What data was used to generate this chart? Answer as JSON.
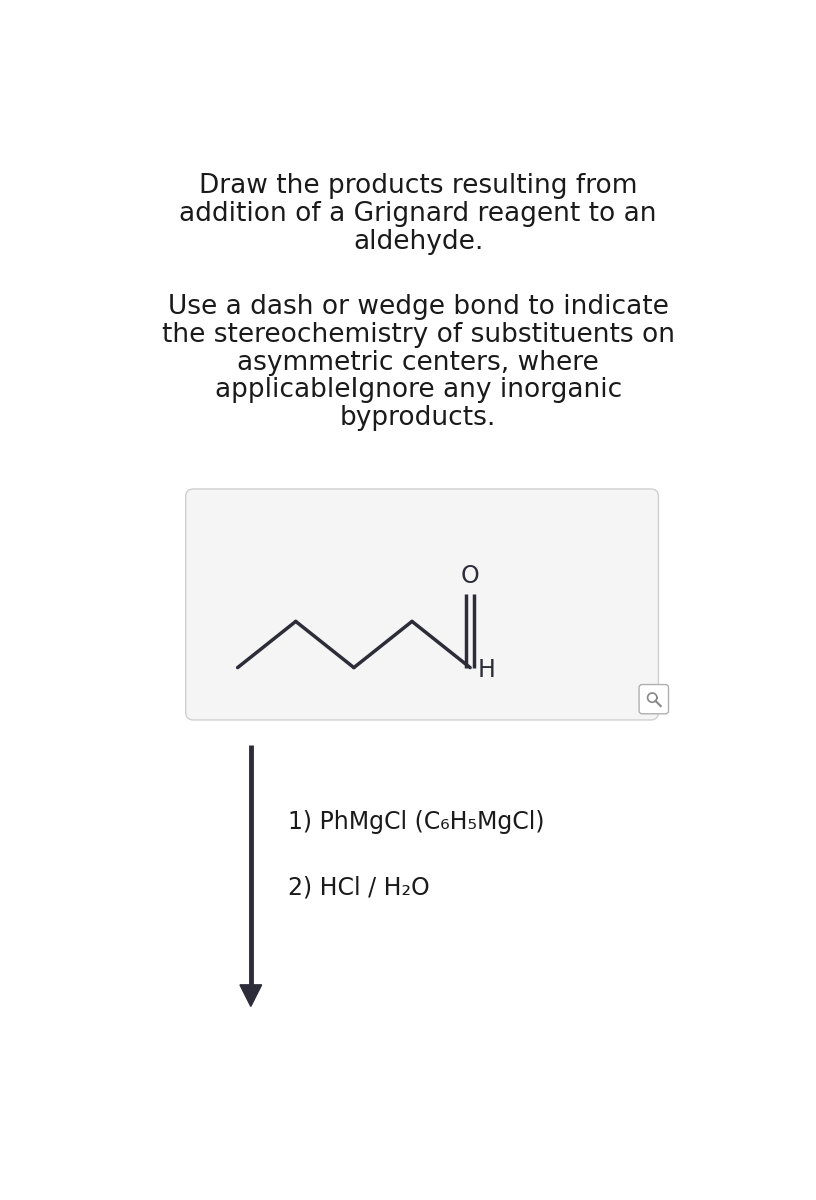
{
  "title_lines": [
    "Draw the products resulting from",
    "addition of a Grignard reagent to an",
    "aldehyde."
  ],
  "subtitle_lines": [
    "Use a dash or wedge bond to indicate",
    "the stereochemistry of substituents on",
    "asymmetric centers, where",
    "applicableIgnore any inorganic",
    "byproducts."
  ],
  "reagent_line1": "1) PhMgCl (C₆H₅MgCl)",
  "reagent_line2": "2) HCl / H₂O",
  "background_color": "#ffffff",
  "text_color": "#1a1a1a",
  "box_fill_color": "#f5f5f5",
  "box_border_color": "#d0d0d0",
  "molecule_color": "#2d2d3a",
  "arrow_color": "#2d2d3a",
  "title_fontsize": 19,
  "subtitle_fontsize": 19,
  "reagent_fontsize": 17
}
